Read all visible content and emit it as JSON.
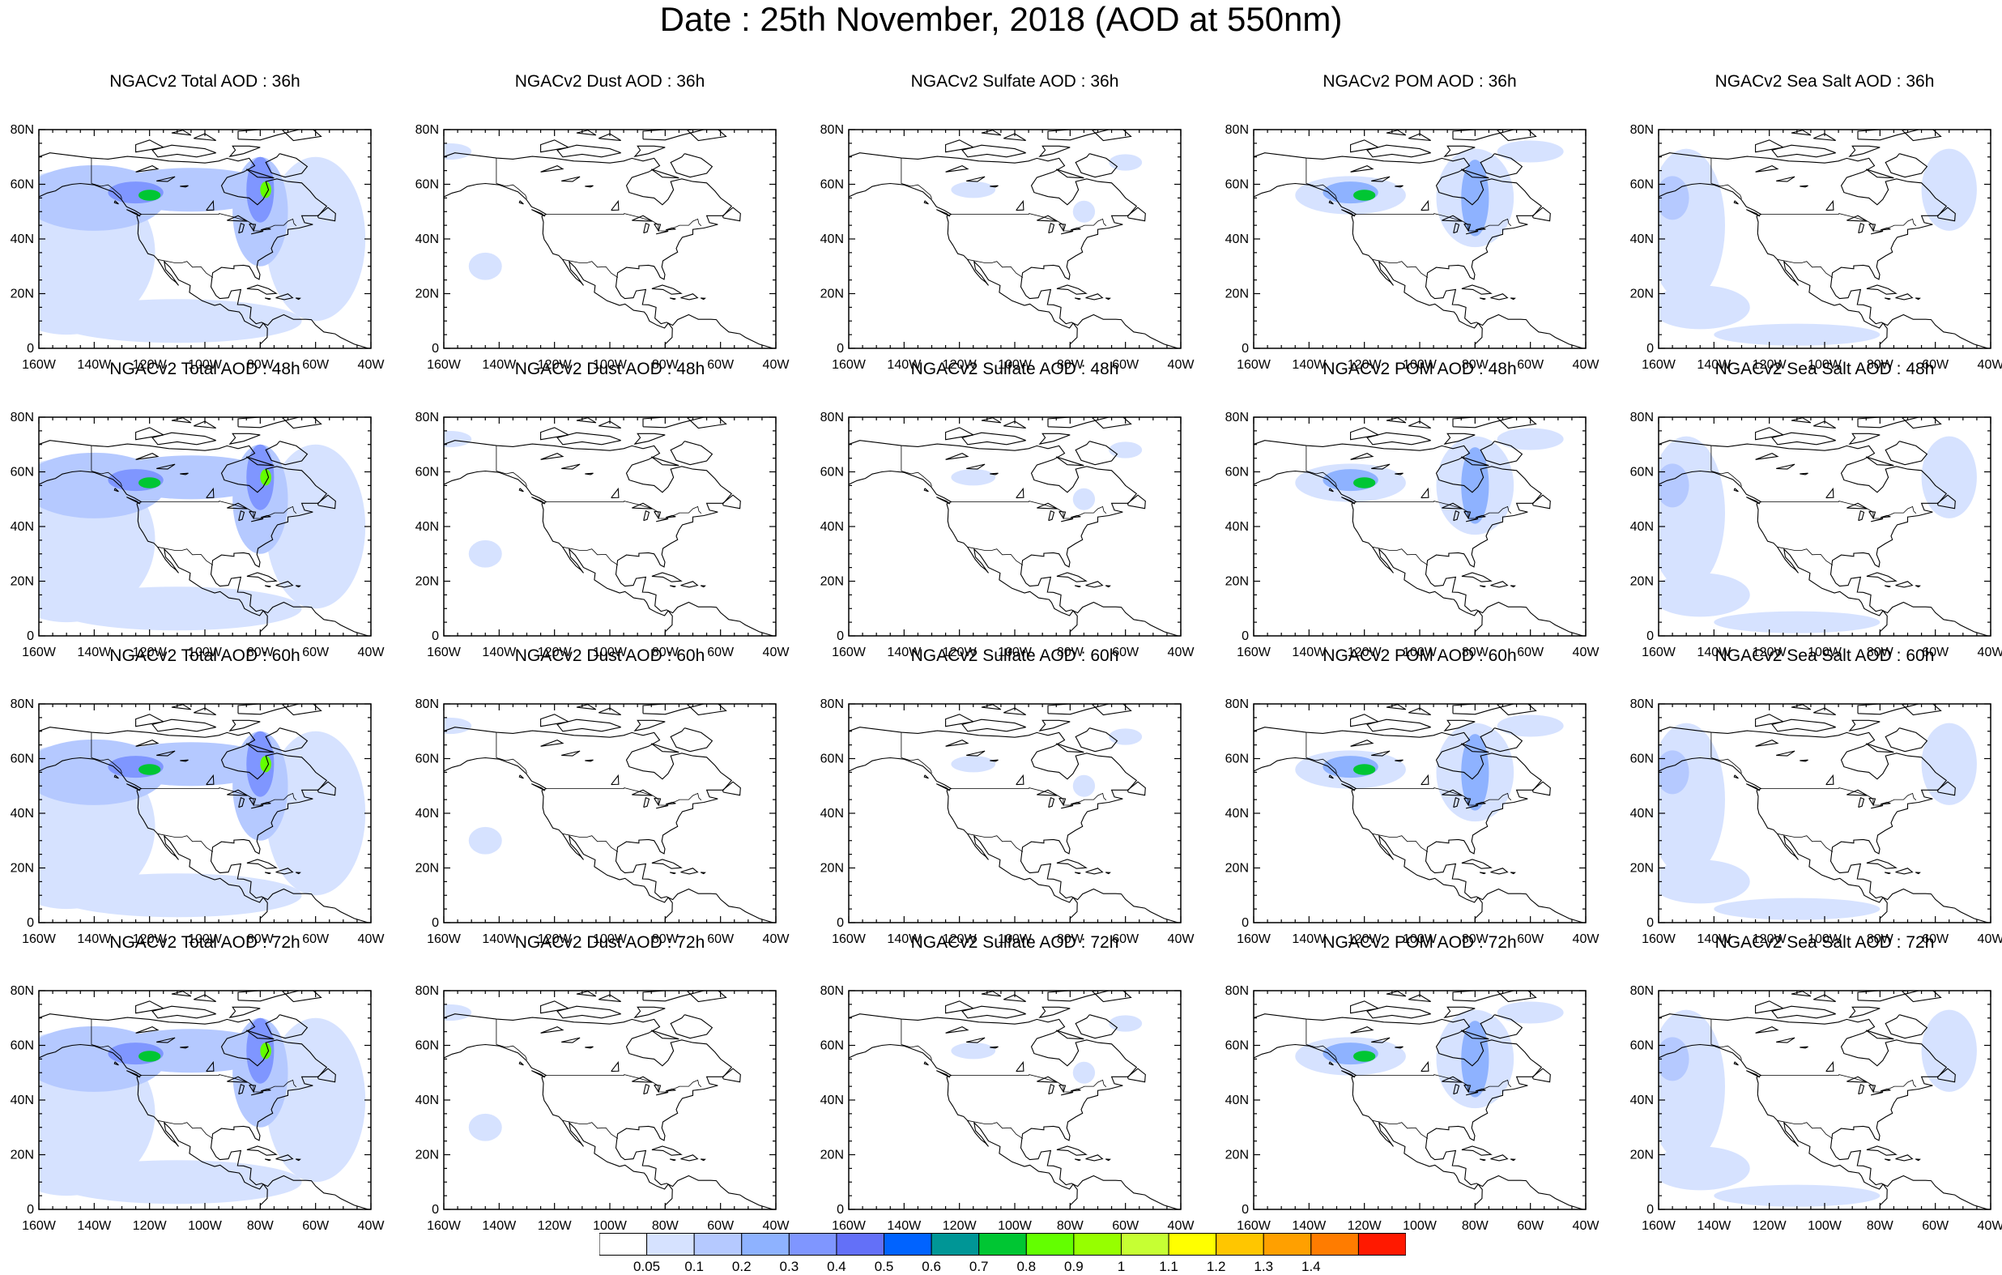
{
  "title": "Date : 25th November, 2018 (AOD at 550nm)",
  "x_ticks": [
    "160W",
    "140W",
    "120W",
    "100W",
    "80W",
    "60W",
    "40W"
  ],
  "y_ticks": [
    "0",
    "20N",
    "40N",
    "60N",
    "80N"
  ],
  "rows": [
    [
      "NGACv2 Total AOD : 36h",
      "NGACv2 Dust AOD : 36h",
      "NGACv2 Sulfate AOD : 36h",
      "NGACv2 POM AOD : 36h",
      "NGACv2 Sea Salt AOD : 36h"
    ],
    [
      "NGACv2 Total AOD : 48h",
      "NGACv2 Dust AOD : 48h",
      "NGACv2 Sulfate AOD : 48h",
      "NGACv2 POM AOD : 48h",
      "NGACv2 Sea Salt AOD : 48h"
    ],
    [
      "NGACv2 Total AOD : 60h",
      "NGACv2 Dust AOD : 60h",
      "NGACv2 Sulfate AOD : 60h",
      "NGACv2 POM AOD : 60h",
      "NGACv2 Sea Salt AOD : 60h"
    ],
    [
      "NGACv2 Total AOD : 72h",
      "NGACv2 Dust AOD : 72h",
      "NGACv2 Sulfate AOD : 72h",
      "NGACv2 POM AOD : 72h",
      "NGACv2 Sea Salt  AOD : 72h"
    ]
  ],
  "panel_types": [
    "total",
    "dust",
    "sulfate",
    "pom",
    "seasalt"
  ],
  "colorbar": {
    "colors": [
      "#ffffff",
      "#d6e2ff",
      "#b5c9ff",
      "#8eb2ff",
      "#7f96ff",
      "#6370f8",
      "#0063ff",
      "#009696",
      "#00c633",
      "#63ff00",
      "#96ff00",
      "#c6ff33",
      "#ffff00",
      "#ffc600",
      "#ffa000",
      "#ff7c00",
      "#ff1900"
    ],
    "labels": [
      "0.05",
      "0.1",
      "0.2",
      "0.3",
      "0.4",
      "0.5",
      "0.6",
      "0.7",
      "0.8",
      "0.9",
      "1",
      "1.1",
      "1.2",
      "1.3",
      "1.4"
    ]
  }
}
